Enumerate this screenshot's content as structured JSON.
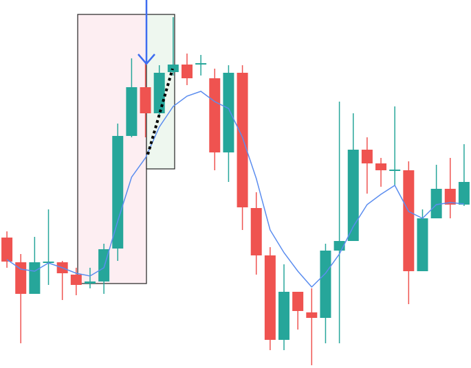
{
  "chart_data": {
    "type": "candlestick",
    "up_color": "#26a69a",
    "down_color": "#ef5350",
    "ylim": [
      0,
      536
    ],
    "open": [
      190,
      154,
      108,
      153,
      154,
      136,
      123,
      126,
      174,
      338,
      409,
      371,
      431,
      442,
      443,
      422,
      314,
      430,
      233,
      164,
      41,
      111,
      81,
      73,
      171,
      185,
      318,
      298,
      288,
      288,
      141,
      218,
      261,
      238
    ],
    "high": [
      199,
      166,
      191,
      231,
      156,
      146,
      146,
      181,
      356,
      451,
      444,
      441,
      511,
      458,
      456,
      436,
      441,
      441,
      256,
      176,
      151,
      111,
      116,
      181,
      388,
      371,
      336,
      306,
      381,
      301,
      231,
      296,
      306,
      326
    ],
    "low": [
      146,
      36,
      108,
      121,
      99,
      106,
      116,
      108,
      156,
      336,
      336,
      366,
      426,
      412,
      426,
      288,
      271,
      201,
      136,
      26,
      26,
      56,
      4,
      36,
      36,
      185,
      254,
      264,
      266,
      93,
      141,
      218,
      218,
      236
    ],
    "close": [
      155,
      108,
      154,
      155,
      138,
      121,
      126,
      173,
      338,
      409,
      371,
      430,
      442,
      422,
      444,
      314,
      430,
      234,
      164,
      41,
      111,
      83,
      73,
      171,
      185,
      318,
      298,
      288,
      289,
      141,
      218,
      261,
      238,
      271
    ],
    "ma": {
      "color": "#5b8def",
      "values": [
        158,
        144,
        141,
        153,
        146,
        138,
        134,
        146,
        214,
        278,
        306,
        351,
        381,
        396,
        403,
        388,
        378,
        336,
        276,
        201,
        168,
        141,
        118,
        138,
        166,
        206,
        238,
        253,
        266,
        228,
        218,
        238,
        241,
        239
      ]
    }
  }
}
